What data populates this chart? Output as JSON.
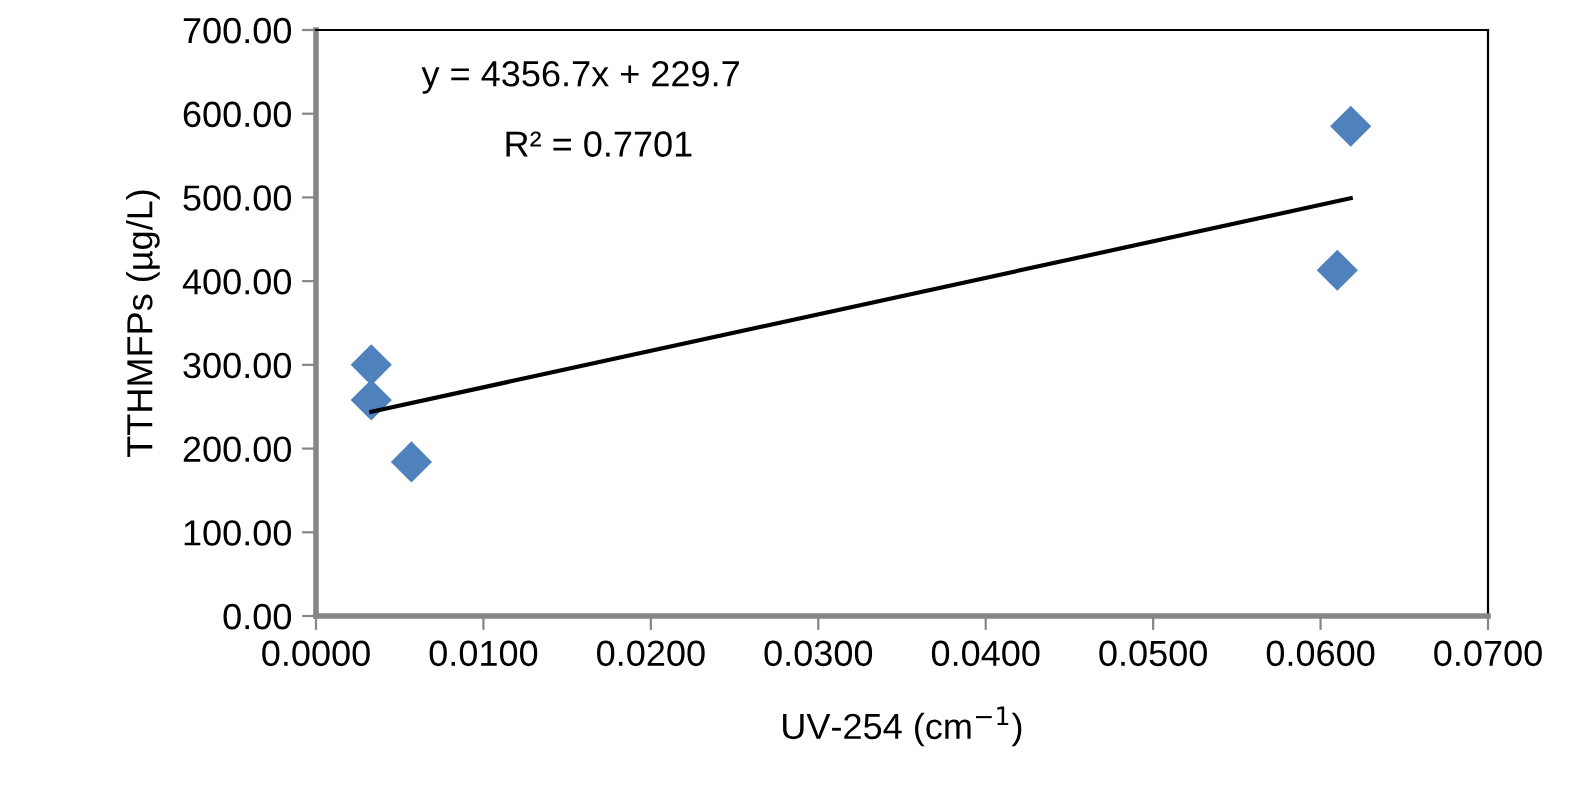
{
  "chart_data": {
    "type": "scatter",
    "xlabel": "UV-254 (cm$^{−1}$)",
    "ylabel": "TTHMFPs (µg/L)",
    "series": [
      {
        "color": "#4f81bd",
        "marker": "diamond",
        "x": [
          0.0033,
          0.0033,
          0.0057,
          0.0618,
          0.061
        ],
        "values": [
          300,
          258,
          184,
          585,
          413
        ]
      },
      {
        "type": "line",
        "color": "#000000",
        "marker": "none",
        "x": [
          0.0033,
          0.0618
        ],
        "values": [
          244,
          499
        ]
      }
    ],
    "annotations": [
      "y = 4356.7x + 229.7",
      "R² = 0.7701"
    ],
    "xlim": [
      0,
      0.07
    ],
    "xticks": [
      {
        "value": 0,
        "label": "0.0000"
      },
      {
        "value": 0.01,
        "label": "0.0100"
      },
      {
        "value": 0.02,
        "label": "0.0200"
      },
      {
        "value": 0.03,
        "label": "0.0300"
      },
      {
        "value": 0.04,
        "label": "0.0400"
      },
      {
        "value": 0.05,
        "label": "0.0500"
      },
      {
        "value": 0.06,
        "label": "0.0600"
      },
      {
        "value": 0.07,
        "label": "0.0700"
      }
    ],
    "ylim": [
      0,
      700
    ],
    "yticks": [
      {
        "value": 0,
        "label": "0.00"
      },
      {
        "value": 100,
        "label": "100.00"
      },
      {
        "value": 200,
        "label": "200.00"
      },
      {
        "value": 300,
        "label": "300.00"
      },
      {
        "value": 400,
        "label": "400.00"
      },
      {
        "value": 500,
        "label": "500.00"
      },
      {
        "value": 600,
        "label": "600.00"
      },
      {
        "value": 700,
        "label": "700.00"
      }
    ],
    "grid": false,
    "legend": false
  }
}
